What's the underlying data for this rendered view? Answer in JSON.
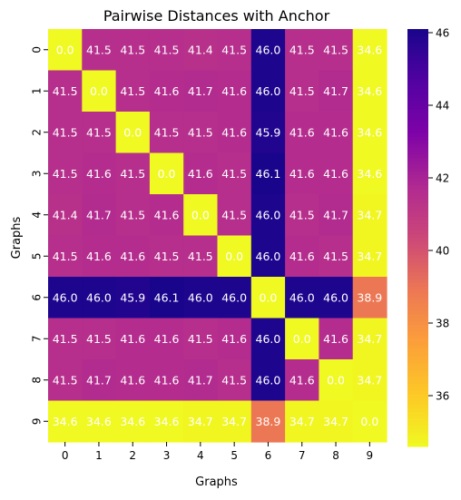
{
  "chart_data": {
    "type": "heatmap",
    "title": "Pairwise Distances with Anchor",
    "xlabel": "Graphs",
    "ylabel": "Graphs",
    "x_categories": [
      "0",
      "1",
      "2",
      "3",
      "4",
      "5",
      "6",
      "7",
      "8",
      "9"
    ],
    "y_categories": [
      "0",
      "1",
      "2",
      "3",
      "4",
      "5",
      "6",
      "7",
      "8",
      "9"
    ],
    "values": [
      [
        0.0,
        41.5,
        41.5,
        41.5,
        41.4,
        41.5,
        46.0,
        41.5,
        41.5,
        34.6
      ],
      [
        41.5,
        0.0,
        41.5,
        41.6,
        41.7,
        41.6,
        46.0,
        41.5,
        41.7,
        34.6
      ],
      [
        41.5,
        41.5,
        0.0,
        41.5,
        41.5,
        41.6,
        45.9,
        41.6,
        41.6,
        34.6
      ],
      [
        41.5,
        41.6,
        41.5,
        0.0,
        41.6,
        41.5,
        46.1,
        41.6,
        41.6,
        34.6
      ],
      [
        41.4,
        41.7,
        41.5,
        41.6,
        0.0,
        41.5,
        46.0,
        41.5,
        41.7,
        34.7
      ],
      [
        41.5,
        41.6,
        41.6,
        41.5,
        41.5,
        0.0,
        46.0,
        41.6,
        41.5,
        34.7
      ],
      [
        46.0,
        46.0,
        45.9,
        46.1,
        46.0,
        46.0,
        0.0,
        46.0,
        46.0,
        38.9
      ],
      [
        41.5,
        41.5,
        41.6,
        41.6,
        41.5,
        41.6,
        46.0,
        0.0,
        41.6,
        34.7
      ],
      [
        41.5,
        41.7,
        41.6,
        41.6,
        41.7,
        41.5,
        46.0,
        41.6,
        0.0,
        34.7
      ],
      [
        34.6,
        34.6,
        34.6,
        34.6,
        34.7,
        34.7,
        38.9,
        34.7,
        34.7,
        0.0
      ]
    ],
    "colormap": "plasma_r",
    "color_range": [
      34.6,
      46.1
    ],
    "colorbar_ticks": [
      "36",
      "38",
      "40",
      "42",
      "44",
      "46"
    ],
    "annotation_color": "#ffffff"
  }
}
